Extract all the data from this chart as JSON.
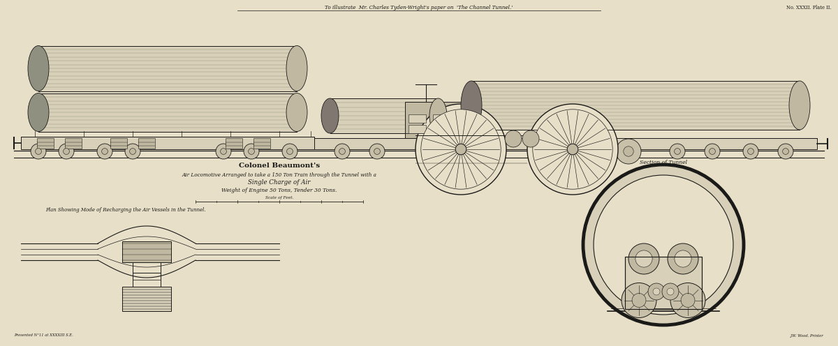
{
  "background_color": "#e8dfc8",
  "line_color": "#1a1a18",
  "fill_light": "#d8d0b8",
  "fill_mid": "#c0b8a0",
  "fill_dark": "#908878",
  "fill_wheel": "#c8c0a8",
  "title_top": "To illustrate  Mr. Charles Tyden-Wright's paper on  'The Channel Tunnel.'",
  "plate_ref": "No. XXXII. Plate II.",
  "main_title_line1": "Colonel Beaumont's",
  "main_title_line2": "Air Locomotive Arranged to take a 150 Ton Train through the Tunnel with a",
  "main_title_line3": "Single Charge of Air",
  "main_title_line4": "Weight of Engine 50 Tons, Tender 30 Tons.",
  "scale_label": "Scale of Feet.",
  "plan_label": "Plan Showing Mode of Recharging the Air Vessels in the Tunnel.",
  "section_label": "Section of Tunnel",
  "bottom_left_ref": "Presented N°11 at XXXXIII S.E.",
  "bottom_right_ref": "J.W. Wood, Printer"
}
